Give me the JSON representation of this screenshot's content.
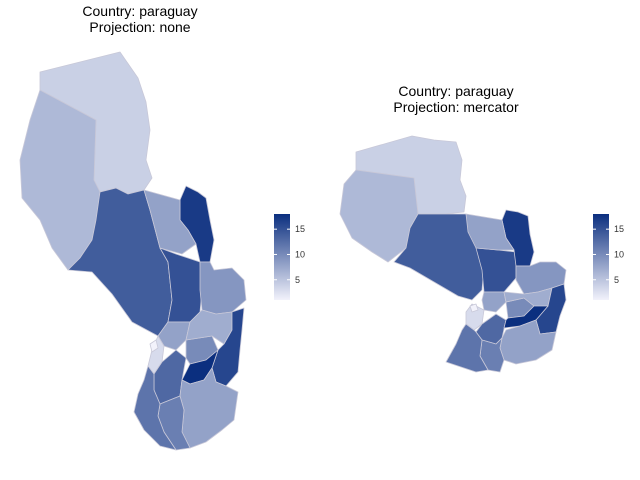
{
  "maps": [
    {
      "id": "left",
      "title_line1": "Country: paraguay",
      "title_line2": "Projection: none"
    },
    {
      "id": "right",
      "title_line1": "Country: paraguay",
      "title_line2": "Projection: mercator"
    }
  ],
  "legend": {
    "min": 1,
    "max": 18,
    "ticks": [
      "5",
      "10",
      "15"
    ],
    "tick_values": [
      5,
      10,
      15
    ],
    "color_low": "#f2f2fb",
    "color_high": "#0b2f7f"
  },
  "regions": [
    {
      "key": "alto_paraguay",
      "value": 4
    },
    {
      "key": "boqueron",
      "value": 6
    },
    {
      "key": "presidente_hayes",
      "value": 14
    },
    {
      "key": "concepcion",
      "value": 15
    },
    {
      "key": "amambay",
      "value": 17
    },
    {
      "key": "san_pedro",
      "value": 8
    },
    {
      "key": "canindeyu",
      "value": 9
    },
    {
      "key": "cordillera",
      "value": 8
    },
    {
      "key": "central",
      "value": 3
    },
    {
      "key": "asuncion",
      "value": 1
    },
    {
      "key": "paraguari",
      "value": 13
    },
    {
      "key": "guaira",
      "value": 10
    },
    {
      "key": "caaguazu",
      "value": 7
    },
    {
      "key": "alto_parana",
      "value": 16
    },
    {
      "key": "caazapa",
      "value": 18
    },
    {
      "key": "itapua",
      "value": 8
    },
    {
      "key": "misiones",
      "value": 11
    },
    {
      "key": "neembucu",
      "value": 12
    }
  ]
}
